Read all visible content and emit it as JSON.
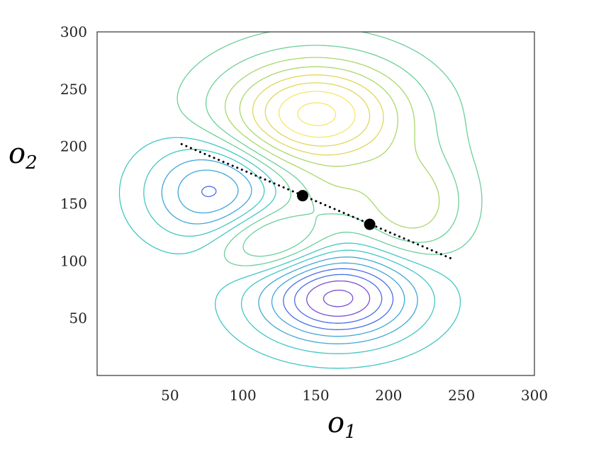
{
  "chart_data": {
    "type": "contour",
    "xlabel": {
      "base": "o",
      "sub": "1"
    },
    "ylabel": {
      "base": "o",
      "sub": "2"
    },
    "xlim": [
      0,
      300
    ],
    "ylim": [
      0,
      300
    ],
    "xticks": [
      "50",
      "100",
      "150",
      "200",
      "250",
      "300"
    ],
    "yticks": [
      "50",
      "100",
      "150",
      "200",
      "250",
      "300"
    ],
    "xtick_values": [
      50,
      100,
      150,
      200,
      250,
      300
    ],
    "ytick_values": [
      50,
      100,
      150,
      200,
      250,
      300
    ],
    "colormap": [
      "#7a4fd6",
      "#4b6ee6",
      "#3fa7d9",
      "#42c7c5",
      "#6ccf9b",
      "#a9d86b",
      "#e0d75a",
      "#f5e76a"
    ],
    "contour_levels": [
      -0.95,
      -0.82,
      -0.69,
      -0.56,
      -0.43,
      -0.3,
      -0.17,
      -0.06,
      0.06,
      0.17,
      0.3,
      0.43,
      0.56,
      0.69,
      0.82,
      0.95
    ],
    "components": [
      {
        "x": 150,
        "y": 228,
        "sx": 42,
        "sy": 32,
        "weight": 1.0
      },
      {
        "x": 165,
        "y": 68,
        "sx": 36,
        "sy": 26,
        "weight": -1.0
      },
      {
        "x": 80,
        "y": 160,
        "sx": 30,
        "sy": 30,
        "weight": -0.62
      },
      {
        "x": 118,
        "y": 118,
        "sx": 28,
        "sy": 22,
        "weight": 0.45
      },
      {
        "x": 215,
        "y": 150,
        "sx": 25,
        "sy": 32,
        "weight": 0.4
      },
      {
        "x": 162,
        "y": 162,
        "sx": 18,
        "sy": 18,
        "weight": 0.12
      }
    ],
    "line": {
      "style": "dotted",
      "color": "#000000",
      "points": [
        [
          58,
          202
        ],
        [
          245,
          101
        ]
      ]
    },
    "markers": [
      {
        "x": 141,
        "y": 157,
        "color": "#000000"
      },
      {
        "x": 187,
        "y": 132,
        "color": "#000000"
      }
    ]
  }
}
